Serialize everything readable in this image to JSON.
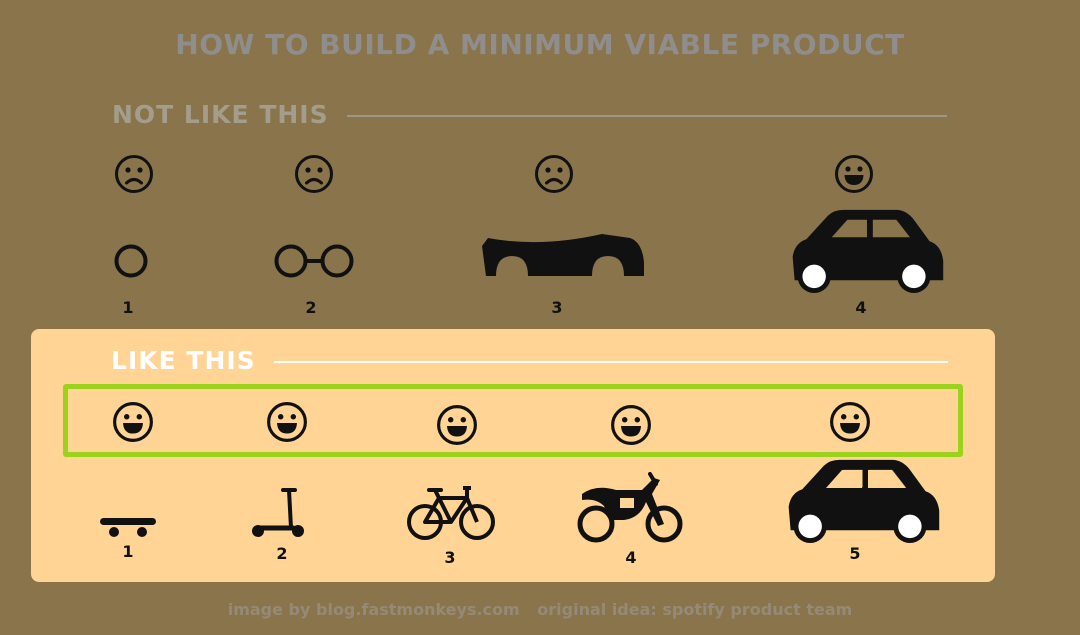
{
  "title": "HOW TO BUILD A MINIMUM VIABLE PRODUCT",
  "not_like_this": {
    "label": "NOT LIKE THIS",
    "steps": [
      {
        "number": "1",
        "mood": "sad",
        "object": "wheel-icon"
      },
      {
        "number": "2",
        "mood": "sad",
        "object": "axle-wheels-icon"
      },
      {
        "number": "3",
        "mood": "sad",
        "object": "car-body-shell-icon"
      },
      {
        "number": "4",
        "mood": "happy",
        "object": "car-icon"
      }
    ]
  },
  "like_this": {
    "label": "LIKE THIS",
    "steps": [
      {
        "number": "1",
        "mood": "happy",
        "object": "skateboard-icon"
      },
      {
        "number": "2",
        "mood": "happy",
        "object": "scooter-icon"
      },
      {
        "number": "3",
        "mood": "happy",
        "object": "bicycle-icon"
      },
      {
        "number": "4",
        "mood": "happy",
        "object": "motorcycle-icon"
      },
      {
        "number": "5",
        "mood": "happy",
        "object": "car-icon"
      }
    ]
  },
  "colors": {
    "background": "#8a744b",
    "panel": "#ffd494",
    "highlight": "#9ad21c",
    "glyph": "#111111"
  },
  "footer": {
    "credit": "image by blog.fastmonkeys.com",
    "idea": "original idea: spotify product team"
  }
}
